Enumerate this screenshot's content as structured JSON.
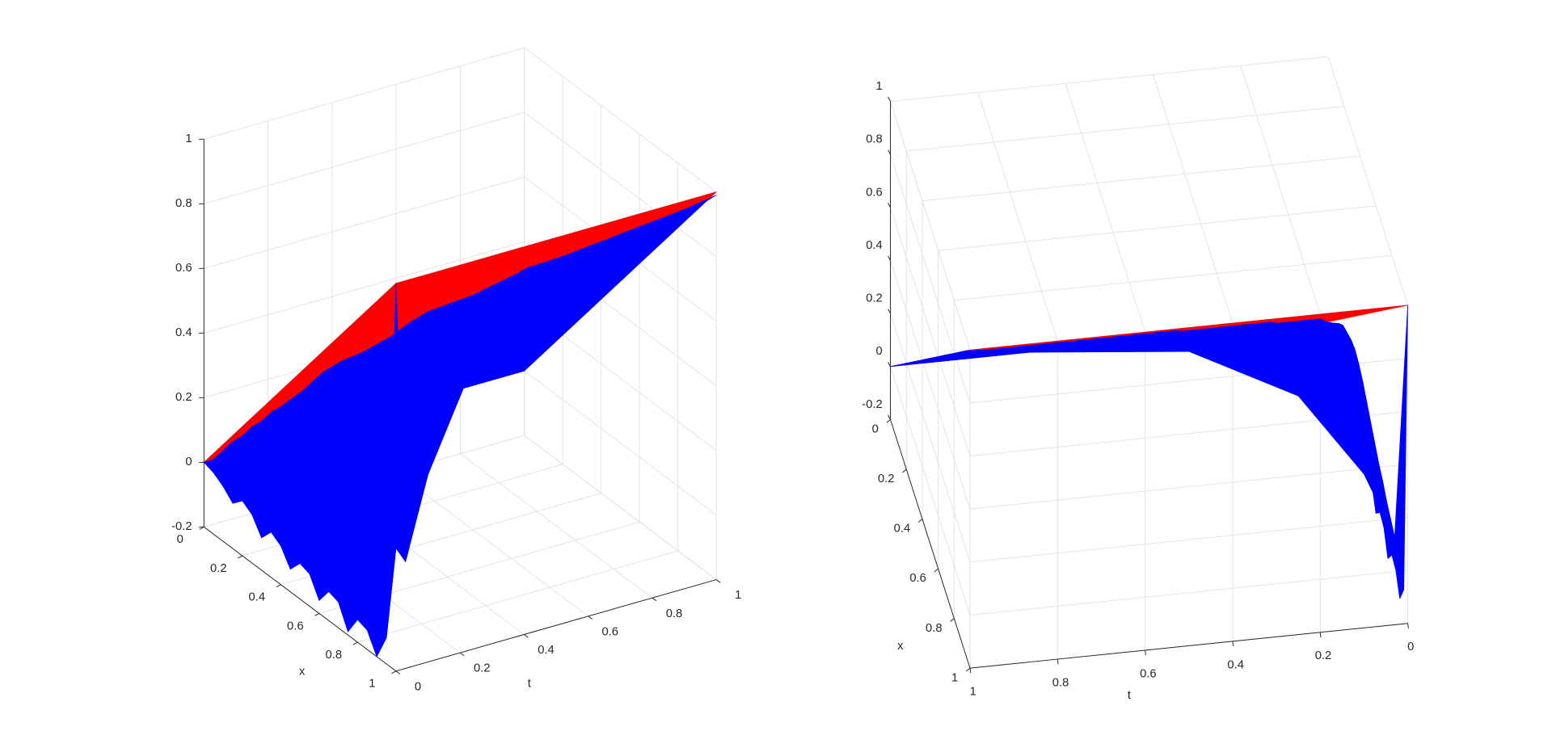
{
  "chart_data": [
    {
      "type": "surface",
      "xlabel": "x",
      "ylabel": "t",
      "xlim": [
        0,
        1
      ],
      "ylim": [
        0,
        1
      ],
      "zlim": [
        -0.2,
        1
      ],
      "xticks": [
        0,
        0.2,
        0.4,
        0.6,
        0.8,
        1
      ],
      "yticks": [
        0,
        0.2,
        0.4,
        0.6,
        0.8,
        1
      ],
      "zticks": [
        -0.2,
        0,
        0.2,
        0.4,
        0.6,
        0.8,
        1
      ],
      "grid": true,
      "series": [
        {
          "color": "#ff0000",
          "x": [
            0,
            1
          ],
          "y": [
            0,
            1
          ],
          "values": [
            [
              0,
              1
            ],
            [
              0,
              1
            ]
          ]
        },
        {
          "color": "#0000ff",
          "x": [
            0,
            0.05,
            0.1,
            0.15,
            0.2,
            0.25,
            0.3,
            0.35,
            0.4,
            0.45,
            0.5,
            0.55,
            0.6,
            0.65,
            0.7,
            0.75,
            0.8,
            0.85,
            0.9,
            0.95,
            1
          ],
          "y": [
            0,
            0.03,
            0.1,
            0.25,
            0.5,
            1
          ],
          "values": [
            [
              0,
              -0.01,
              -0.03,
              -0.06,
              -0.03,
              -0.05,
              -0.1,
              -0.06,
              -0.08,
              -0.13,
              -0.09,
              -0.1,
              -0.16,
              -0.11,
              -0.12,
              -0.19,
              -0.13,
              -0.14,
              -0.2,
              -0.12,
              1
            ],
            [
              0,
              0.05,
              0.1,
              0.14,
              0.19,
              0.23,
              0.28,
              0.32,
              0.34,
              0.36,
              0.37,
              0.36,
              0.34,
              0.31,
              0.28,
              0.25,
              0.22,
              0.2,
              0.17,
              0.15,
              0.13
            ],
            [
              0,
              0.05,
              0.1,
              0.15,
              0.2,
              0.25,
              0.3,
              0.35,
              0.4,
              0.45,
              0.49,
              0.53,
              0.56,
              0.58,
              0.58,
              0.56,
              0.53,
              0.5,
              0.46,
              0.42,
              0.38
            ],
            [
              0,
              0.05,
              0.1,
              0.15,
              0.2,
              0.25,
              0.3,
              0.35,
              0.4,
              0.45,
              0.5,
              0.55,
              0.6,
              0.65,
              0.69,
              0.73,
              0.75,
              0.75,
              0.75,
              0.73,
              0.7
            ],
            [
              0,
              0.05,
              0.1,
              0.15,
              0.2,
              0.25,
              0.3,
              0.35,
              0.4,
              0.45,
              0.5,
              0.55,
              0.6,
              0.65,
              0.7,
              0.75,
              0.8,
              0.84,
              0.87,
              0.9,
              0.91
            ],
            [
              0,
              0.05,
              0.1,
              0.15,
              0.2,
              0.25,
              0.3,
              0.35,
              0.4,
              0.45,
              0.5,
              0.55,
              0.6,
              0.65,
              0.7,
              0.75,
              0.8,
              0.85,
              0.9,
              0.95,
              0.99
            ]
          ]
        }
      ]
    },
    {
      "type": "surface",
      "xlabel": "x",
      "ylabel": "t",
      "xlim": [
        0,
        1
      ],
      "ylim": [
        0,
        1
      ],
      "zlim": [
        -0.2,
        1
      ],
      "xticks": [
        0,
        0.2,
        0.4,
        0.6,
        0.8,
        1
      ],
      "yticks": [
        0,
        0.2,
        0.4,
        0.6,
        0.8,
        1
      ],
      "zticks": [
        -0.2,
        0,
        0.2,
        0.4,
        0.6,
        0.8,
        1
      ],
      "grid": true,
      "series": [
        {
          "color": "#ff0000",
          "x": [
            0,
            1
          ],
          "y": [
            0,
            1
          ],
          "values": [
            [
              0,
              1
            ],
            [
              0,
              1
            ]
          ]
        },
        {
          "color": "#0000ff",
          "x": [
            0,
            0.05,
            0.1,
            0.15,
            0.2,
            0.25,
            0.3,
            0.35,
            0.4,
            0.45,
            0.5,
            0.55,
            0.6,
            0.65,
            0.7,
            0.75,
            0.8,
            0.85,
            0.9,
            0.95,
            1
          ],
          "y": [
            0,
            0.03,
            0.1,
            0.25,
            0.5,
            1
          ],
          "values": [
            [
              0,
              -0.01,
              -0.03,
              -0.06,
              -0.03,
              -0.05,
              -0.1,
              -0.06,
              -0.08,
              -0.13,
              -0.09,
              -0.1,
              -0.16,
              -0.11,
              -0.12,
              -0.19,
              -0.13,
              -0.14,
              -0.2,
              -0.12,
              1
            ],
            [
              0,
              0.05,
              0.1,
              0.14,
              0.19,
              0.23,
              0.28,
              0.32,
              0.34,
              0.36,
              0.37,
              0.36,
              0.34,
              0.31,
              0.28,
              0.25,
              0.22,
              0.2,
              0.17,
              0.15,
              0.13
            ],
            [
              0,
              0.05,
              0.1,
              0.15,
              0.2,
              0.25,
              0.3,
              0.35,
              0.4,
              0.45,
              0.49,
              0.53,
              0.56,
              0.58,
              0.58,
              0.56,
              0.53,
              0.5,
              0.46,
              0.42,
              0.38
            ],
            [
              0,
              0.05,
              0.1,
              0.15,
              0.2,
              0.25,
              0.3,
              0.35,
              0.4,
              0.45,
              0.5,
              0.55,
              0.6,
              0.65,
              0.69,
              0.73,
              0.75,
              0.75,
              0.75,
              0.73,
              0.7
            ],
            [
              0,
              0.05,
              0.1,
              0.15,
              0.2,
              0.25,
              0.3,
              0.35,
              0.4,
              0.45,
              0.5,
              0.55,
              0.6,
              0.65,
              0.7,
              0.75,
              0.8,
              0.84,
              0.87,
              0.9,
              0.91
            ],
            [
              0,
              0.05,
              0.1,
              0.15,
              0.2,
              0.25,
              0.3,
              0.35,
              0.4,
              0.45,
              0.5,
              0.55,
              0.6,
              0.65,
              0.7,
              0.75,
              0.8,
              0.85,
              0.9,
              0.95,
              0.99
            ]
          ]
        }
      ]
    }
  ]
}
